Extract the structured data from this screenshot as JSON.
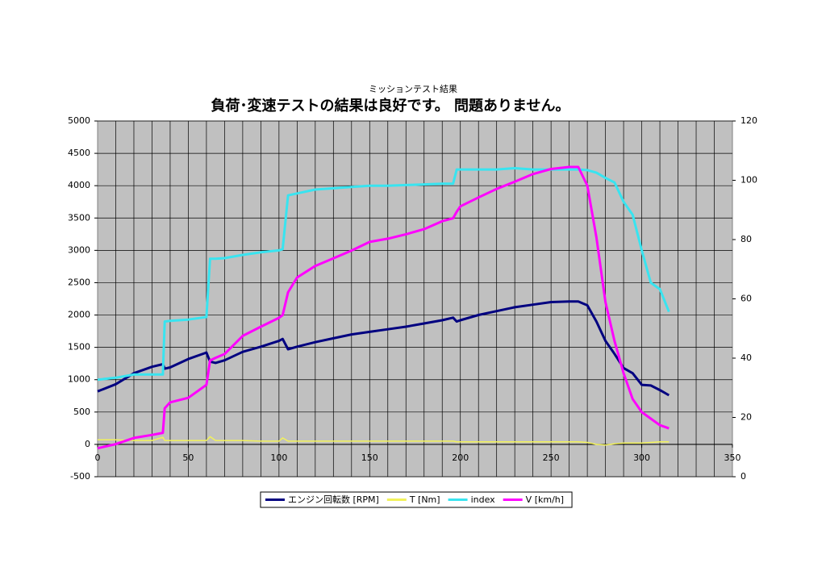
{
  "chart_data": {
    "type": "line",
    "title": "ミッションテスト結果",
    "subtitle": "負荷･変速テストの結果は良好です。 問題ありません。",
    "x": [
      0,
      10,
      20,
      30,
      36,
      37,
      40,
      50,
      60,
      62,
      65,
      70,
      80,
      90,
      100,
      102,
      105,
      110,
      120,
      130,
      140,
      150,
      160,
      170,
      180,
      190,
      196,
      198,
      200,
      210,
      220,
      230,
      240,
      250,
      260,
      265,
      270,
      275,
      280,
      285,
      290,
      295,
      300,
      305,
      310,
      315
    ],
    "series": [
      {
        "name": "エンジン回転数 [RPM]",
        "color": "#000080",
        "values": [
          820,
          930,
          1100,
          1200,
          1240,
          1170,
          1190,
          1320,
          1420,
          1280,
          1260,
          1300,
          1430,
          1510,
          1600,
          1630,
          1470,
          1510,
          1580,
          1640,
          1700,
          1740,
          1780,
          1820,
          1870,
          1920,
          1960,
          1900,
          1920,
          2000,
          2060,
          2120,
          2160,
          2200,
          2210,
          2210,
          2150,
          1900,
          1600,
          1400,
          1180,
          1100,
          920,
          910,
          840,
          760
        ]
      },
      {
        "name": "T [Nm]",
        "color": "#f2f25a",
        "values": [
          70,
          70,
          60,
          60,
          110,
          60,
          60,
          60,
          60,
          120,
          60,
          60,
          60,
          50,
          50,
          100,
          50,
          50,
          50,
          50,
          50,
          50,
          50,
          50,
          50,
          50,
          50,
          40,
          40,
          40,
          40,
          40,
          40,
          40,
          40,
          40,
          30,
          0,
          -10,
          10,
          20,
          20,
          20,
          30,
          40,
          40
        ]
      },
      {
        "name": "index",
        "color": "#38e4f0",
        "values": [
          1000,
          1030,
          1080,
          1080,
          1080,
          1900,
          1910,
          1930,
          1970,
          2870,
          2870,
          2880,
          2930,
          2970,
          3000,
          3020,
          3850,
          3880,
          3940,
          3960,
          3980,
          4000,
          4000,
          4010,
          4020,
          4030,
          4030,
          4250,
          4250,
          4250,
          4250,
          4270,
          4250,
          4250,
          4250,
          4250,
          4240,
          4200,
          4120,
          4050,
          3750,
          3550,
          3000,
          2500,
          2400,
          2050
        ]
      },
      {
        "name": "V [km/h]",
        "color": "#ff00ff",
        "axis": "y2",
        "values": [
          9.6,
          11,
          13.1,
          14.1,
          14.8,
          23.1,
          25.1,
          26.6,
          31,
          39.2,
          40.1,
          41.4,
          47.5,
          50.6,
          53.6,
          54.5,
          62.2,
          67.2,
          71.1,
          73.7,
          76.3,
          79.2,
          80.3,
          81.8,
          83.5,
          86.2,
          87.2,
          89.4,
          91.2,
          94.2,
          97.1,
          99.5,
          102.1,
          103.8,
          104.5,
          104.5,
          98.2,
          80.7,
          58.9,
          45.8,
          34.9,
          26.2,
          21.8,
          19.6,
          17.4,
          16.3
        ]
      }
    ],
    "xlim": [
      0,
      350
    ],
    "xticks": [
      0,
      50,
      100,
      150,
      200,
      250,
      300,
      350
    ],
    "xgrid_interval": 10,
    "ylim": [
      -500,
      5000
    ],
    "yticks": [
      -500,
      0,
      500,
      1000,
      1500,
      2000,
      2500,
      3000,
      3500,
      4000,
      4500,
      5000
    ],
    "y2lim": [
      0,
      120
    ],
    "y2ticks": [
      0,
      20,
      40,
      60,
      80,
      100,
      120
    ],
    "grid": true,
    "legend": "bottom",
    "plot_background": "#c0c0c0"
  }
}
